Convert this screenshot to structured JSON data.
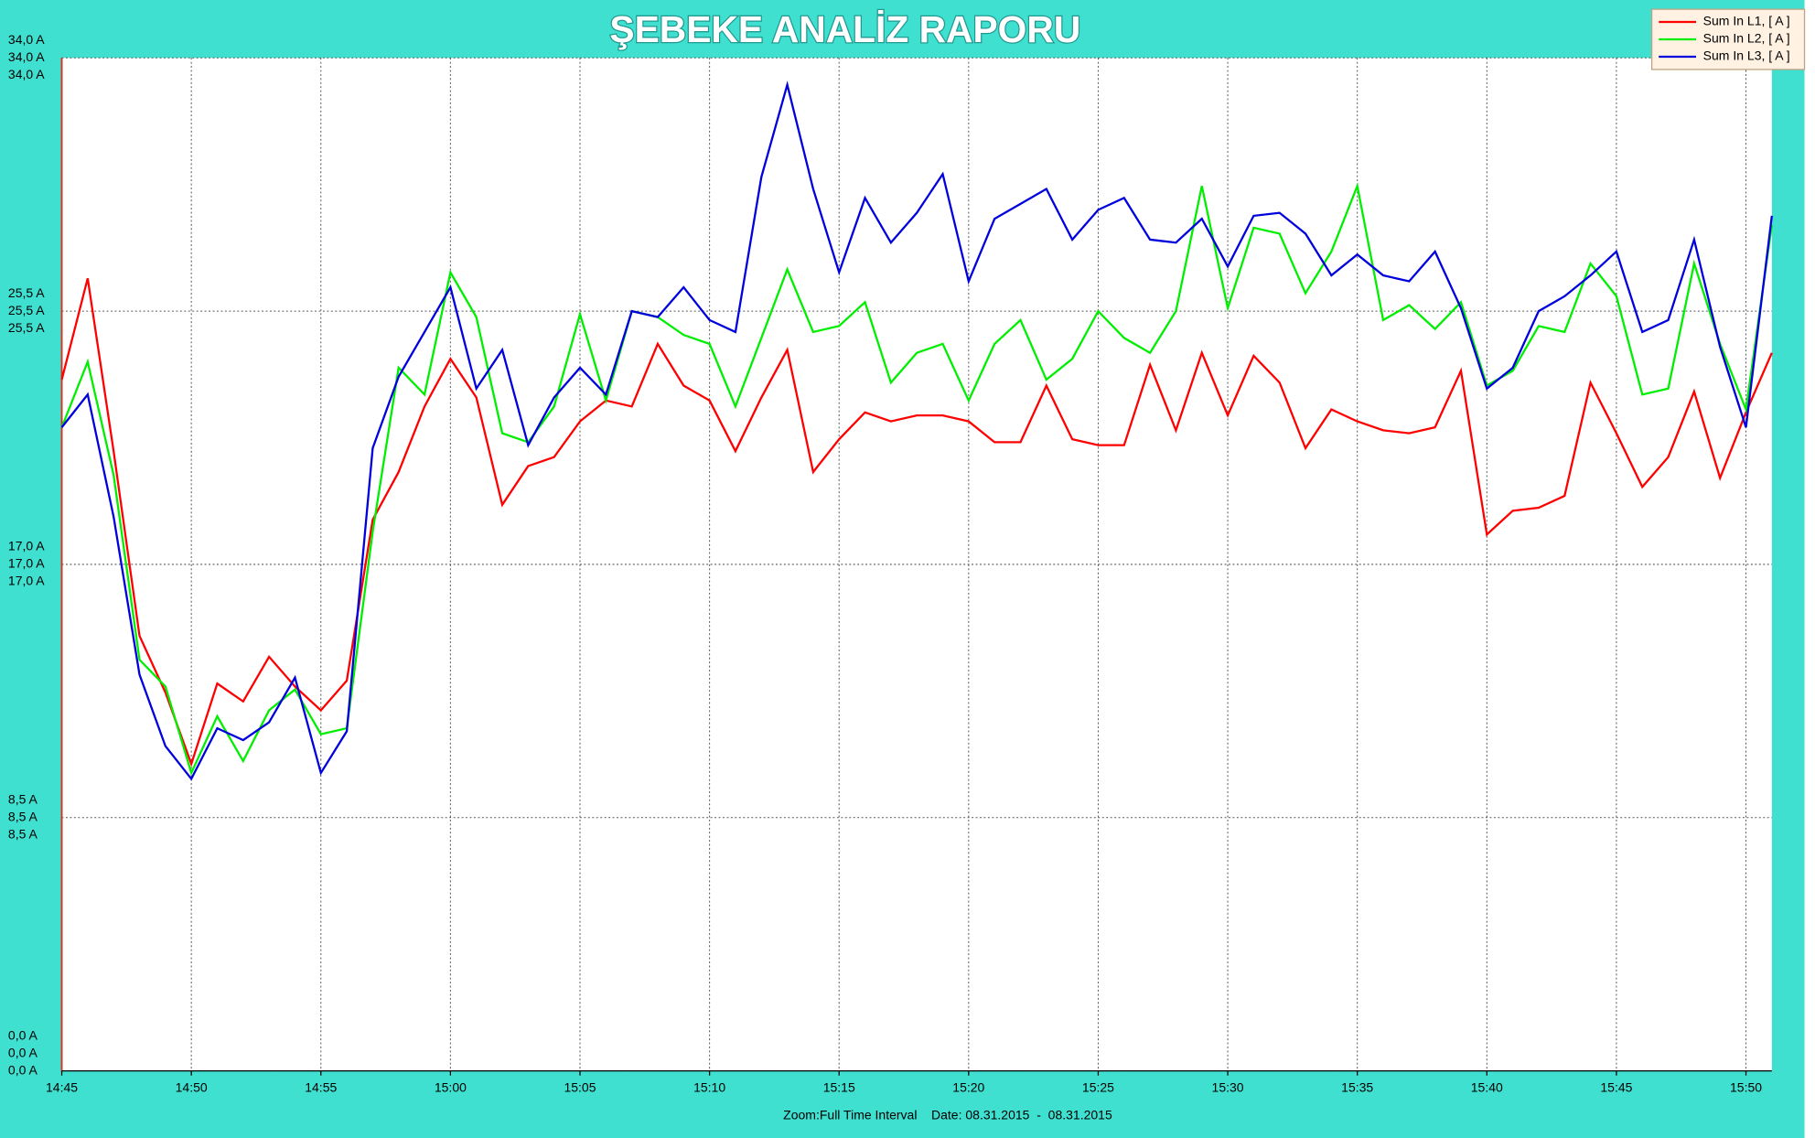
{
  "chart_data": {
    "type": "line",
    "title": "ŞEBEKE ANALİZ RAPORU",
    "footer": "Zoom:Full Time Interval    Date: 08.31.2015  -  08.31.2015",
    "x": [
      "14:45",
      "14:46",
      "14:47",
      "14:48",
      "14:49",
      "14:50",
      "14:51",
      "14:52",
      "14:53",
      "14:54",
      "14:55",
      "14:56",
      "14:57",
      "14:58",
      "14:59",
      "15:00",
      "15:01",
      "15:02",
      "15:03",
      "15:04",
      "15:05",
      "15:06",
      "15:07",
      "15:08",
      "15:09",
      "15:10",
      "15:11",
      "15:12",
      "15:13",
      "15:14",
      "15:15",
      "15:16",
      "15:17",
      "15:18",
      "15:19",
      "15:20",
      "15:21",
      "15:22",
      "15:23",
      "15:24",
      "15:25",
      "15:26",
      "15:27",
      "15:28",
      "15:29",
      "15:30",
      "15:31",
      "15:32",
      "15:33",
      "15:34",
      "15:35",
      "15:36",
      "15:37",
      "15:38",
      "15:39",
      "15:40",
      "15:41",
      "15:42",
      "15:43",
      "15:44",
      "15:45",
      "15:46",
      "15:47",
      "15:48",
      "15:49",
      "15:50",
      "15:51"
    ],
    "xlim": [
      "14:45",
      "15:51"
    ],
    "xticks": [
      "14:45",
      "14:50",
      "14:55",
      "15:00",
      "15:05",
      "15:10",
      "15:15",
      "15:20",
      "15:25",
      "15:30",
      "15:35",
      "15:40",
      "15:45",
      "15:50"
    ],
    "ylim": [
      0,
      34
    ],
    "yticks": [
      {
        "value": 0,
        "label": "0,0 A"
      },
      {
        "value": 8.5,
        "label": "8,5 A"
      },
      {
        "value": 17,
        "label": "17,0 A"
      },
      {
        "value": 25.5,
        "label": "25,5 A"
      },
      {
        "value": 34,
        "label": "34,0 A"
      }
    ],
    "grid": true,
    "legend": "top-right",
    "series": [
      {
        "name": "Sum In L1, [ A ]",
        "color": "#ff0000",
        "values": [
          23.2,
          26.6,
          20.8,
          14.6,
          12.7,
          10.3,
          13.0,
          12.4,
          13.9,
          12.9,
          12.1,
          13.1,
          18.5,
          20.1,
          22.3,
          23.9,
          22.6,
          19.0,
          20.3,
          20.6,
          21.8,
          22.5,
          22.3,
          24.4,
          23.0,
          22.5,
          20.8,
          22.6,
          24.2,
          20.1,
          21.2,
          22.1,
          21.8,
          22.0,
          22.0,
          21.8,
          21.1,
          21.1,
          23.0,
          21.2,
          21.0,
          21.0,
          23.7,
          21.5,
          24.1,
          22.0,
          24.0,
          23.1,
          20.9,
          22.2,
          21.8,
          21.5,
          21.4,
          21.6,
          23.5,
          18.0,
          18.8,
          18.9,
          19.3,
          23.1,
          21.4,
          19.6,
          20.6,
          22.8,
          19.9,
          22.1,
          24.1
        ]
      },
      {
        "name": "Sum In L2, [ A ]",
        "color": "#00ee00",
        "values": [
          21.6,
          23.8,
          20.0,
          13.8,
          12.9,
          10.0,
          11.9,
          10.4,
          12.1,
          12.8,
          11.3,
          11.5,
          18.1,
          23.6,
          22.7,
          26.8,
          25.3,
          21.4,
          21.1,
          22.3,
          25.4,
          22.5,
          25.5,
          25.3,
          24.7,
          24.4,
          22.3,
          24.6,
          26.9,
          24.8,
          25.0,
          25.8,
          23.1,
          24.1,
          24.4,
          22.5,
          24.4,
          25.2,
          23.2,
          23.9,
          25.5,
          24.6,
          24.1,
          25.5,
          29.7,
          25.6,
          28.3,
          28.1,
          26.1,
          27.5,
          29.7,
          25.2,
          25.7,
          24.9,
          25.8,
          23.0,
          23.5,
          25.0,
          24.8,
          27.1,
          26.0,
          22.7,
          22.9,
          27.1,
          24.4,
          22.2,
          28.4
        ]
      },
      {
        "name": "Sum In L3, [ A ]",
        "color": "#0000dd",
        "values": [
          21.6,
          22.7,
          18.6,
          13.3,
          10.9,
          9.8,
          11.5,
          11.1,
          11.7,
          13.2,
          10.0,
          11.4,
          20.9,
          23.3,
          24.8,
          26.3,
          22.9,
          24.2,
          21.0,
          22.6,
          23.6,
          22.7,
          25.5,
          25.3,
          26.3,
          25.2,
          24.8,
          30.0,
          33.1,
          29.6,
          26.8,
          29.3,
          27.8,
          28.8,
          30.1,
          26.5,
          28.6,
          29.1,
          29.6,
          27.9,
          28.9,
          29.3,
          27.9,
          27.8,
          28.6,
          27.0,
          28.7,
          28.8,
          28.1,
          26.7,
          27.4,
          26.7,
          26.5,
          27.5,
          25.6,
          22.9,
          23.6,
          25.5,
          26.0,
          26.7,
          27.5,
          24.8,
          25.2,
          27.9,
          24.3,
          21.6,
          28.7
        ]
      }
    ]
  }
}
